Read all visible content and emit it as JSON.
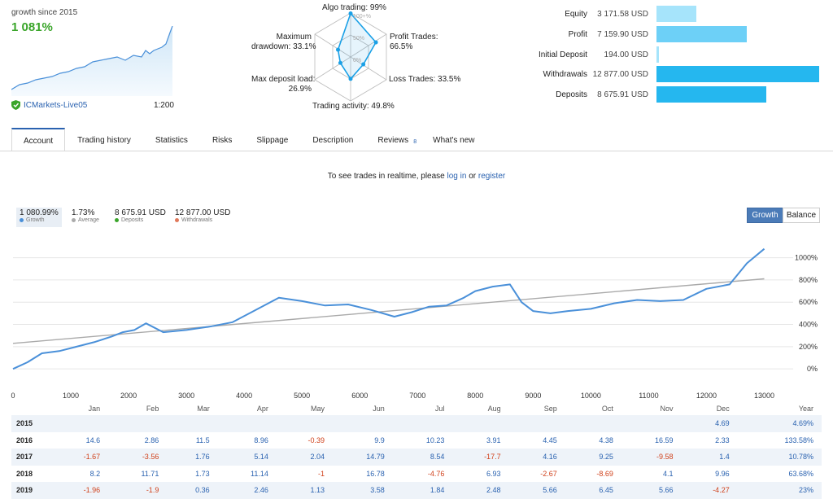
{
  "summary": {
    "growth_label": "growth since 2015",
    "growth_value": "1 081%",
    "broker": "ICMarkets-Live05",
    "leverage": "1:200"
  },
  "radar": {
    "algo": "Algo trading: 99%",
    "profit_trades": "Profit Trades:\n66.5%",
    "loss_trades": "Loss Trades: 33.5%",
    "activity": "Trading activity: 49.8%",
    "deposit_load": "Max deposit load:\n26.9%",
    "drawdown": "Maximum\ndrawdown: 33.1%",
    "scale": [
      "100+%",
      "50%",
      "0%"
    ],
    "values": {
      "algo": 99,
      "profit_trades": 66.5,
      "loss_trades": 33.5,
      "activity": 49.8,
      "deposit_load": 26.9,
      "drawdown": 33.1
    }
  },
  "balance_bars": [
    {
      "label": "Equity",
      "value": "3 171.58 USD",
      "amount": 3171.58,
      "color": "#a6e4fb"
    },
    {
      "label": "Profit",
      "value": "7 159.90 USD",
      "amount": 7159.9,
      "color": "#6dd0f7"
    },
    {
      "label": "Initial Deposit",
      "value": "194.00 USD",
      "amount": 194.0,
      "color": "#a6e4fb"
    },
    {
      "label": "Withdrawals",
      "value": "12 877.00 USD",
      "amount": 12877.0,
      "color": "#25b7ef"
    },
    {
      "label": "Deposits",
      "value": "8 675.91 USD",
      "amount": 8675.91,
      "color": "#25b7ef"
    }
  ],
  "tabs": [
    {
      "label": "Account",
      "active": true
    },
    {
      "label": "Trading history"
    },
    {
      "label": "Statistics"
    },
    {
      "label": "Risks"
    },
    {
      "label": "Slippage"
    },
    {
      "label": "Description"
    },
    {
      "label": "Reviews",
      "badge": "8"
    },
    {
      "label": "What's new"
    }
  ],
  "realtime": {
    "text_before": "To see trades in realtime, please ",
    "login": "log in",
    "middle": " or ",
    "register": "register"
  },
  "stats": [
    {
      "value": "1 080.99%",
      "label": "Growth",
      "color": "#4a90d9"
    },
    {
      "value": "1.73%",
      "label": "Average",
      "color": "#aaaaaa"
    },
    {
      "value": "8 675.91 USD",
      "label": "Deposits",
      "color": "#3aa52a"
    },
    {
      "value": "12 877.00 USD",
      "label": "Withdrawals",
      "color": "#e0785a"
    }
  ],
  "toggle": {
    "growth": "Growth",
    "balance": "Balance"
  },
  "chart_data": {
    "type": "line",
    "series": [
      {
        "color": "#4a90d9",
        "x": [
          0,
          250,
          500,
          800,
          1100,
          1400,
          1700,
          1900,
          2100,
          2300,
          2600,
          3000,
          3400,
          3800,
          4200,
          4600,
          5000,
          5400,
          5800,
          6200,
          6600,
          6900,
          7200,
          7500,
          7800,
          8000,
          8300,
          8600,
          8800,
          9000,
          9300,
          9600,
          10000,
          10400,
          10800,
          11200,
          11600,
          12000,
          12400,
          12700,
          13000
        ],
        "y": [
          0,
          60,
          140,
          160,
          200,
          240,
          290,
          330,
          350,
          410,
          330,
          350,
          380,
          420,
          530,
          640,
          610,
          570,
          580,
          530,
          470,
          510,
          560,
          570,
          640,
          700,
          740,
          760,
          600,
          520,
          500,
          520,
          540,
          590,
          620,
          610,
          620,
          720,
          760,
          950,
          1080
        ]
      },
      {
        "color": "#aaaaaa",
        "x": [
          0,
          13000
        ],
        "y": [
          230,
          810
        ]
      }
    ],
    "xticks": [
      "0",
      "1000",
      "2000",
      "3000",
      "4000",
      "5000",
      "6000",
      "7000",
      "8000",
      "9000",
      "10000",
      "11000",
      "12000",
      "13000"
    ],
    "yticks": [
      "0%",
      "200%",
      "400%",
      "600%",
      "800%",
      "1000%"
    ],
    "xlim": [
      0,
      13500
    ],
    "ylim": [
      -50,
      1180
    ]
  },
  "monthly": {
    "headers": [
      "",
      "Jan",
      "Feb",
      "Mar",
      "Apr",
      "May",
      "Jun",
      "Jul",
      "Aug",
      "Sep",
      "Oct",
      "Nov",
      "Dec",
      "Year"
    ],
    "rows": [
      [
        "2015",
        "",
        "",
        "",
        "",
        "",
        "",
        "",
        "",
        "",
        "",
        "",
        "4.69",
        "4.69%"
      ],
      [
        "2016",
        "14.6",
        "2.86",
        "11.5",
        "8.96",
        "-0.39",
        "9.9",
        "10.23",
        "3.91",
        "4.45",
        "4.38",
        "16.59",
        "2.33",
        "133.58%"
      ],
      [
        "2017",
        "-1.67",
        "-3.56",
        "1.76",
        "5.14",
        "2.04",
        "14.79",
        "8.54",
        "-17.7",
        "4.16",
        "9.25",
        "-9.58",
        "1.4",
        "10.78%"
      ],
      [
        "2018",
        "8.2",
        "11.71",
        "1.73",
        "11.14",
        "-1",
        "16.78",
        "-4.76",
        "6.93",
        "-2.67",
        "-8.69",
        "4.1",
        "9.96",
        "63.68%"
      ],
      [
        "2019",
        "-1.96",
        "-1.9",
        "0.36",
        "2.46",
        "1.13",
        "3.58",
        "1.84",
        "2.48",
        "5.66",
        "6.45",
        "5.66",
        "-4.27",
        "23%"
      ]
    ]
  }
}
